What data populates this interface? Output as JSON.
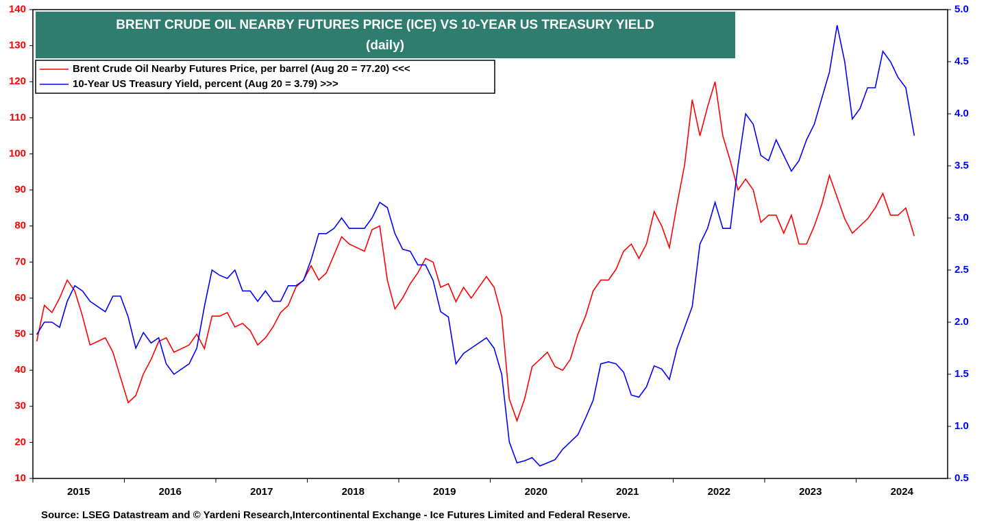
{
  "chart_data": {
    "type": "line",
    "title": "BRENT CRUDE OIL NEARBY FUTURES PRICE (ICE) VS 10-YEAR US TREASURY YIELD",
    "subtitle": "(daily)",
    "source": "Source: LSEG Datastream and © Yardeni Research,Intercontinental Exchange - Ice Futures Limited and Federal Reserve.",
    "x": [
      2015.042,
      2015.125,
      2015.208,
      2015.292,
      2015.375,
      2015.458,
      2015.542,
      2015.625,
      2015.708,
      2015.792,
      2015.875,
      2015.958,
      2016.042,
      2016.125,
      2016.208,
      2016.292,
      2016.375,
      2016.458,
      2016.542,
      2016.625,
      2016.708,
      2016.792,
      2016.875,
      2016.958,
      2017.042,
      2017.125,
      2017.208,
      2017.292,
      2017.375,
      2017.458,
      2017.542,
      2017.625,
      2017.708,
      2017.792,
      2017.875,
      2017.958,
      2018.042,
      2018.125,
      2018.208,
      2018.292,
      2018.375,
      2018.458,
      2018.542,
      2018.625,
      2018.708,
      2018.792,
      2018.875,
      2018.958,
      2019.042,
      2019.125,
      2019.208,
      2019.292,
      2019.375,
      2019.458,
      2019.542,
      2019.625,
      2019.708,
      2019.792,
      2019.875,
      2019.958,
      2020.042,
      2020.125,
      2020.208,
      2020.292,
      2020.375,
      2020.458,
      2020.542,
      2020.625,
      2020.708,
      2020.792,
      2020.875,
      2020.958,
      2021.042,
      2021.125,
      2021.208,
      2021.292,
      2021.375,
      2021.458,
      2021.542,
      2021.625,
      2021.708,
      2021.792,
      2021.875,
      2021.958,
      2022.042,
      2022.125,
      2022.208,
      2022.292,
      2022.375,
      2022.458,
      2022.542,
      2022.625,
      2022.708,
      2022.792,
      2022.875,
      2022.958,
      2023.042,
      2023.125,
      2023.208,
      2023.292,
      2023.375,
      2023.458,
      2023.542,
      2023.625,
      2023.708,
      2023.792,
      2023.875,
      2023.958,
      2024.042,
      2024.125,
      2024.208,
      2024.292,
      2024.375,
      2024.458,
      2024.542,
      2024.635
    ],
    "series": [
      {
        "name": "Brent Crude Oil Nearby Futures Price, per barrel (Aug 20 = 77.20) <<<",
        "color": "#ff0000",
        "axis": "y",
        "values": [
          48,
          58,
          56,
          60,
          65,
          62,
          55,
          47,
          48,
          49,
          45,
          38,
          31,
          33,
          39,
          43,
          48,
          49,
          45,
          46,
          47,
          50,
          46,
          55,
          55,
          56,
          52,
          53,
          51,
          47,
          49,
          52,
          56,
          58,
          63,
          65,
          69,
          65,
          67,
          72,
          77,
          75,
          74,
          73,
          79,
          80,
          65,
          57,
          60,
          64,
          67,
          71,
          70,
          63,
          64,
          59,
          63,
          60,
          63,
          66,
          63,
          55,
          32,
          26,
          32,
          41,
          43,
          45,
          41,
          40,
          43,
          50,
          55,
          62,
          65,
          65,
          68,
          73,
          75,
          71,
          75,
          84,
          80,
          74,
          86,
          97,
          115,
          105,
          113,
          120,
          105,
          98,
          90,
          93,
          90,
          81,
          83,
          83,
          78,
          83,
          75,
          75,
          80,
          86,
          94,
          88,
          82,
          78,
          80,
          82,
          85,
          89,
          83,
          83,
          85,
          77.2
        ]
      },
      {
        "name": "10-Year US Treasury Yield, percent (Aug 20 = 3.79) >>>",
        "color": "#0000ff",
        "axis": "y2",
        "values": [
          1.88,
          2.0,
          2.0,
          1.95,
          2.2,
          2.35,
          2.3,
          2.2,
          2.15,
          2.1,
          2.25,
          2.25,
          2.05,
          1.75,
          1.9,
          1.8,
          1.85,
          1.6,
          1.5,
          1.55,
          1.6,
          1.75,
          2.15,
          2.5,
          2.45,
          2.42,
          2.5,
          2.3,
          2.3,
          2.2,
          2.3,
          2.2,
          2.2,
          2.35,
          2.35,
          2.4,
          2.6,
          2.85,
          2.85,
          2.9,
          3.0,
          2.9,
          2.9,
          2.9,
          3.0,
          3.15,
          3.1,
          2.85,
          2.7,
          2.68,
          2.55,
          2.55,
          2.4,
          2.1,
          2.05,
          1.6,
          1.7,
          1.75,
          1.8,
          1.85,
          1.75,
          1.5,
          0.85,
          0.65,
          0.67,
          0.7,
          0.62,
          0.65,
          0.68,
          0.78,
          0.85,
          0.92,
          1.08,
          1.25,
          1.6,
          1.62,
          1.6,
          1.52,
          1.3,
          1.28,
          1.38,
          1.58,
          1.55,
          1.45,
          1.75,
          1.95,
          2.15,
          2.75,
          2.9,
          3.15,
          2.9,
          2.9,
          3.5,
          4.0,
          3.9,
          3.6,
          3.55,
          3.75,
          3.6,
          3.45,
          3.55,
          3.75,
          3.9,
          4.15,
          4.4,
          4.85,
          4.5,
          3.95,
          4.05,
          4.25,
          4.25,
          4.6,
          4.5,
          4.35,
          4.25,
          3.79
        ]
      }
    ],
    "xlim": [
      2015,
      2025
    ],
    "xticks": [
      2015,
      2016,
      2017,
      2018,
      2019,
      2020,
      2021,
      2022,
      2023,
      2024
    ],
    "ylim": [
      10,
      140
    ],
    "yticks": [
      10,
      20,
      30,
      40,
      50,
      60,
      70,
      80,
      90,
      100,
      110,
      120,
      130,
      140
    ],
    "y2lim": [
      0.5,
      5
    ],
    "y2ticks": [
      {
        "value": 5,
        "label": "5.0"
      },
      4.5,
      {
        "value": 4,
        "label": "4.0"
      },
      3.5,
      {
        "value": 3,
        "label": "3.0"
      },
      2.5,
      {
        "value": 2,
        "label": "2.0"
      },
      1.5,
      {
        "value": 1,
        "label": "1.0"
      },
      0.5
    ],
    "legend": "upper left"
  }
}
